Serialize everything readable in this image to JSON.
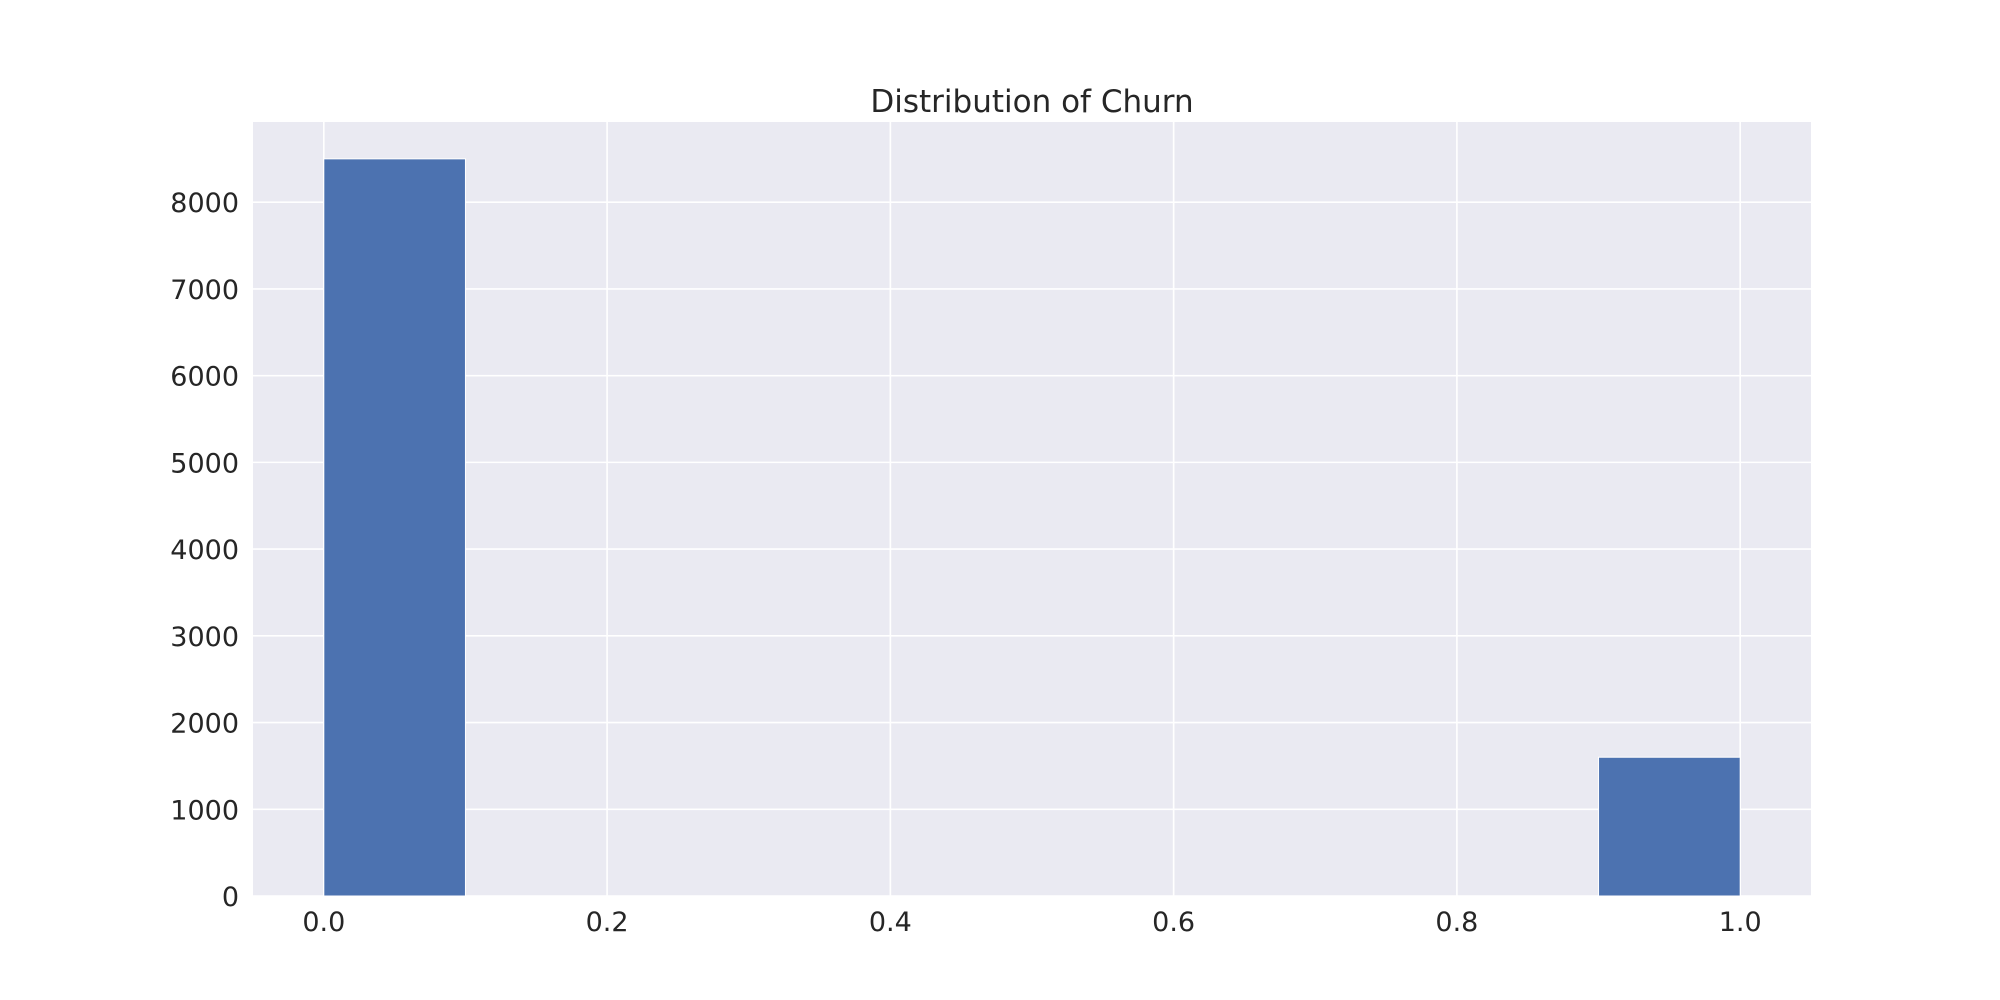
{
  "chart_data": {
    "type": "bar",
    "title": "Distribution of Churn",
    "xlabel": "",
    "ylabel": "",
    "xlim": [
      -0.05,
      1.05
    ],
    "ylim": [
      0,
      8925
    ],
    "xticks": [
      0.0,
      0.2,
      0.4,
      0.6,
      0.8,
      1.0
    ],
    "xtick_labels": [
      "0.0",
      "0.2",
      "0.4",
      "0.6",
      "0.8",
      "1.0"
    ],
    "yticks": [
      0,
      1000,
      2000,
      3000,
      4000,
      5000,
      6000,
      7000,
      8000
    ],
    "ytick_labels": [
      "0",
      "1000",
      "2000",
      "3000",
      "4000",
      "5000",
      "6000",
      "7000",
      "8000"
    ],
    "bins": [
      {
        "start": 0.0,
        "end": 0.1,
        "value": 8500
      },
      {
        "start": 0.1,
        "end": 0.2,
        "value": 0
      },
      {
        "start": 0.2,
        "end": 0.3,
        "value": 0
      },
      {
        "start": 0.3,
        "end": 0.4,
        "value": 0
      },
      {
        "start": 0.4,
        "end": 0.5,
        "value": 0
      },
      {
        "start": 0.5,
        "end": 0.6,
        "value": 0
      },
      {
        "start": 0.6,
        "end": 0.7,
        "value": 0
      },
      {
        "start": 0.7,
        "end": 0.8,
        "value": 0
      },
      {
        "start": 0.8,
        "end": 0.9,
        "value": 0
      },
      {
        "start": 0.9,
        "end": 1.0,
        "value": 1600
      }
    ],
    "grid": true,
    "legend": "none",
    "colors": {
      "bar": "#4C72B0",
      "plot_background": "#EAEAF2",
      "grid": "#FFFFFF",
      "text": "#262626"
    }
  }
}
